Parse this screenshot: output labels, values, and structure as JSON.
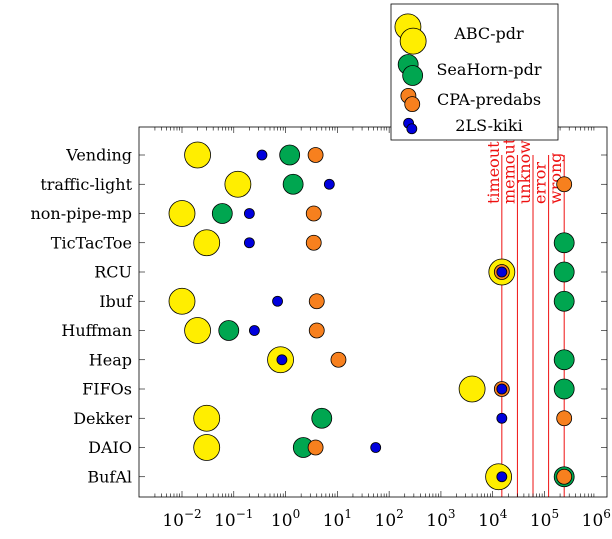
{
  "chart_data": {
    "type": "scatter",
    "title": "",
    "xlabel": "",
    "ylabel": "",
    "x_scale": "log",
    "xlim": [
      0.003,
      1000000
    ],
    "x_ticks": [
      {
        "value": 0.01,
        "base": "10",
        "exp": "−2"
      },
      {
        "value": 0.1,
        "base": "10",
        "exp": "−1"
      },
      {
        "value": 1,
        "base": "10",
        "exp": "0"
      },
      {
        "value": 10,
        "base": "10",
        "exp": "1"
      },
      {
        "value": 100,
        "base": "10",
        "exp": "2"
      },
      {
        "value": 1000,
        "base": "10",
        "exp": "3"
      },
      {
        "value": 10000,
        "base": "10",
        "exp": "4"
      },
      {
        "value": 100000,
        "base": "10",
        "exp": "5"
      },
      {
        "value": 1000000,
        "base": "10",
        "exp": "6"
      }
    ],
    "categories": [
      "Vending",
      "traffic-light",
      "non-pipe-mp",
      "TicTacToe",
      "RCU",
      "Ibuf",
      "Huffman",
      "Heap",
      "FIFOs",
      "Dekker",
      "DAIO",
      "BufAl"
    ],
    "series": [
      {
        "name": "ABC-pdr",
        "color": "#ffee00",
        "values": [
          0.02,
          0.12,
          0.01,
          0.03,
          15000,
          0.01,
          0.02,
          0.8,
          4000,
          0.03,
          0.03,
          13000
        ]
      },
      {
        "name": "SeaHorn-pdr",
        "color": "#00a650",
        "values": [
          1.2,
          1.4,
          0.06,
          240000,
          240000,
          240000,
          0.08,
          240000,
          240000,
          5,
          2.2,
          240000
        ]
      },
      {
        "name": "CPA-predabs",
        "color": "#f7801e",
        "values": [
          3.8,
          240000,
          3.5,
          3.5,
          15000,
          4,
          4,
          10.5,
          15000,
          240000,
          3.8,
          240000
        ]
      },
      {
        "name": "2LS-kiki",
        "color": "#0000dd",
        "values": [
          0.35,
          7,
          0.2,
          0.2,
          15000,
          0.7,
          0.25,
          0.85,
          15000,
          15000,
          55,
          15000
        ]
      }
    ],
    "limit_lines": [
      {
        "label": "timeout",
        "value": 15000
      },
      {
        "label": "memout",
        "value": 30000
      },
      {
        "label": "unknown",
        "value": 60000
      },
      {
        "label": "error",
        "value": 120000
      },
      {
        "label": "wrong",
        "value": 240000
      }
    ],
    "legend_position": "top-right",
    "grid": false
  }
}
